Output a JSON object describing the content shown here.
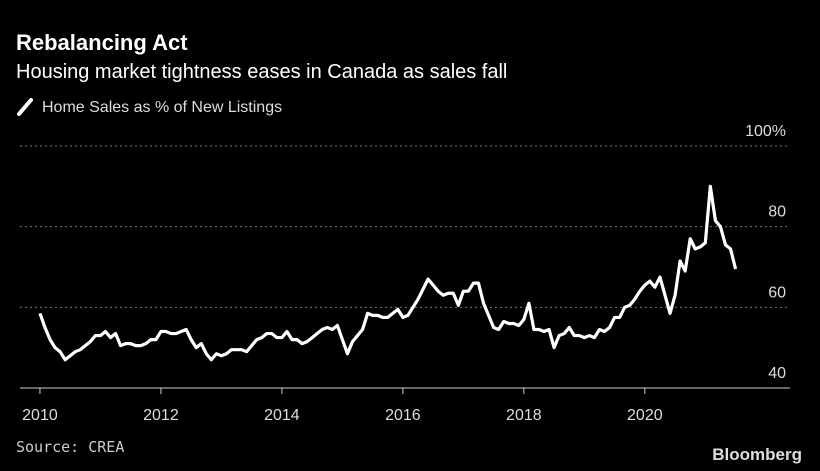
{
  "chart_data": {
    "type": "line",
    "title": "Rebalancing Act",
    "subtitle": "Housing market tightness eases in Canada as sales fall",
    "source": "Source: CREA",
    "brand": "Bloomberg",
    "x": [
      2010,
      2010.083,
      2010.167,
      2010.25,
      2010.333,
      2010.417,
      2010.5,
      2010.583,
      2010.667,
      2010.75,
      2010.833,
      2010.917,
      2011,
      2011.083,
      2011.167,
      2011.25,
      2011.333,
      2011.417,
      2011.5,
      2011.583,
      2011.667,
      2011.75,
      2011.833,
      2011.917,
      2012,
      2012.083,
      2012.167,
      2012.25,
      2012.333,
      2012.417,
      2012.5,
      2012.583,
      2012.667,
      2012.75,
      2012.833,
      2012.917,
      2013,
      2013.083,
      2013.167,
      2013.25,
      2013.333,
      2013.417,
      2013.5,
      2013.583,
      2013.667,
      2013.75,
      2013.833,
      2013.917,
      2014,
      2014.083,
      2014.167,
      2014.25,
      2014.333,
      2014.417,
      2014.5,
      2014.583,
      2014.667,
      2014.75,
      2014.833,
      2014.917,
      2015,
      2015.083,
      2015.167,
      2015.25,
      2015.333,
      2015.417,
      2015.5,
      2015.583,
      2015.667,
      2015.75,
      2015.833,
      2015.917,
      2016,
      2016.083,
      2016.167,
      2016.25,
      2016.333,
      2016.417,
      2016.5,
      2016.583,
      2016.667,
      2016.75,
      2016.833,
      2016.917,
      2017,
      2017.083,
      2017.167,
      2017.25,
      2017.333,
      2017.417,
      2017.5,
      2017.583,
      2017.667,
      2017.75,
      2017.833,
      2017.917,
      2018,
      2018.083,
      2018.167,
      2018.25,
      2018.333,
      2018.417,
      2018.5,
      2018.583,
      2018.667,
      2018.75,
      2018.833,
      2018.917,
      2019,
      2019.083,
      2019.167,
      2019.25,
      2019.333,
      2019.417,
      2019.5,
      2019.583,
      2019.667,
      2019.75,
      2019.833,
      2019.917,
      2020,
      2020.083,
      2020.167,
      2020.25,
      2020.333,
      2020.417,
      2020.5,
      2020.583,
      2020.667,
      2020.75,
      2020.833,
      2020.917,
      2021,
      2021.083,
      2021.167,
      2021.25,
      2021.333,
      2021.417,
      2021.5
    ],
    "series": [
      {
        "name": "Home Sales as % of New Listings",
        "color": "#ffffff",
        "values": [
          58.5,
          55,
          52,
          50,
          49,
          47,
          48,
          49,
          49.5,
          50.5,
          51.5,
          53,
          53,
          54,
          52.5,
          53.5,
          50.5,
          51,
          51,
          50.5,
          50.5,
          51,
          52,
          52,
          54,
          54,
          53.5,
          53.5,
          54,
          54.5,
          52,
          50,
          51,
          48.5,
          47,
          48.5,
          48,
          48.5,
          49.5,
          49.5,
          49.5,
          49,
          50.5,
          52,
          52.5,
          53.5,
          53.5,
          52.5,
          52.5,
          54,
          52,
          52,
          51,
          51.5,
          52.5,
          53.5,
          54.5,
          55,
          54.5,
          55.5,
          52,
          48.5,
          51.5,
          53,
          54.5,
          58.5,
          58,
          58,
          57.5,
          57.5,
          58.5,
          59.5,
          57.5,
          58,
          60,
          62,
          64.5,
          67,
          65.5,
          64,
          63,
          63.5,
          63.5,
          60.5,
          64,
          64,
          66,
          66,
          61,
          58,
          55,
          54.5,
          56.5,
          56,
          56,
          55.5,
          57,
          61,
          54.5,
          54.5,
          54,
          54.5,
          50,
          53,
          53.5,
          55,
          53,
          53,
          52.5,
          53,
          52.5,
          54.5,
          54,
          55,
          57.5,
          57.5,
          60,
          60.5,
          62,
          64,
          65.5,
          66.5,
          65,
          67.5,
          63,
          58.5,
          63,
          71.5,
          69,
          77,
          74.5,
          75,
          76,
          90,
          81.5,
          80,
          75.5,
          74.5,
          69.5
        ]
      }
    ],
    "xlim": [
      2009.67,
      2022.4
    ],
    "xticks": [
      2010,
      2012,
      2014,
      2016,
      2018,
      2020
    ],
    "ylim": [
      40,
      100
    ],
    "yticks": [
      40,
      60,
      80,
      {
        "value": 100,
        "label": "100%"
      }
    ],
    "grid": true
  }
}
